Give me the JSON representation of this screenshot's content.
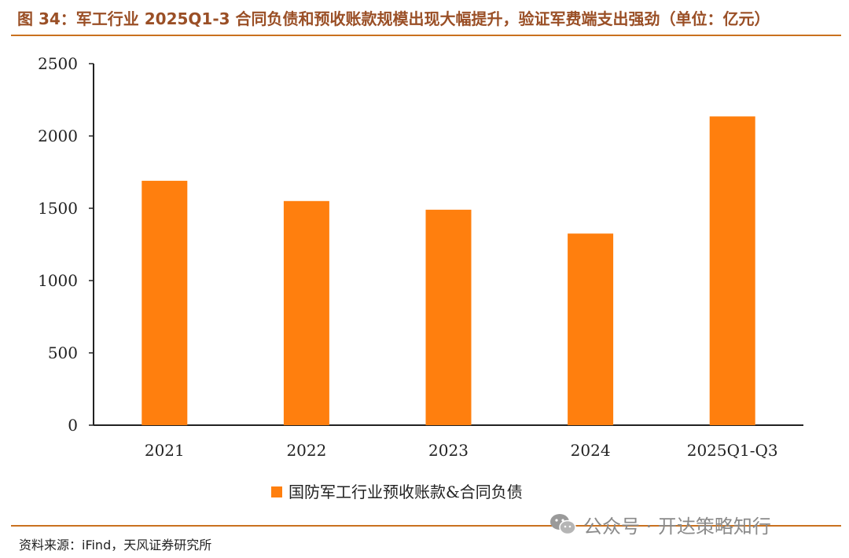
{
  "figure": {
    "title": "图 34：军工行业 2025Q1-3 合同负债和预收账款规模出现大幅提升，验证军费端支出强劲（单位：亿元）",
    "source": "资料来源：iFind，天风证券研究所",
    "watermark": "公众号 · 开达策略知行",
    "accent_color": "#C9711F",
    "title_color": "#9A4F26"
  },
  "chart_data": {
    "type": "bar",
    "categories": [
      "2021",
      "2022",
      "2023",
      "2024",
      "2025Q1-Q3"
    ],
    "series": [
      {
        "name": "国防军工行业预收账款&合同负债",
        "color": "#FF7F0E",
        "values": [
          1690,
          1550,
          1490,
          1325,
          2135
        ]
      }
    ],
    "ylim": [
      0,
      2500
    ],
    "yticks": [
      "0",
      "500",
      "1000",
      "1500",
      "2000",
      "2500"
    ],
    "grid": false,
    "legend_position": "bottom-center"
  }
}
